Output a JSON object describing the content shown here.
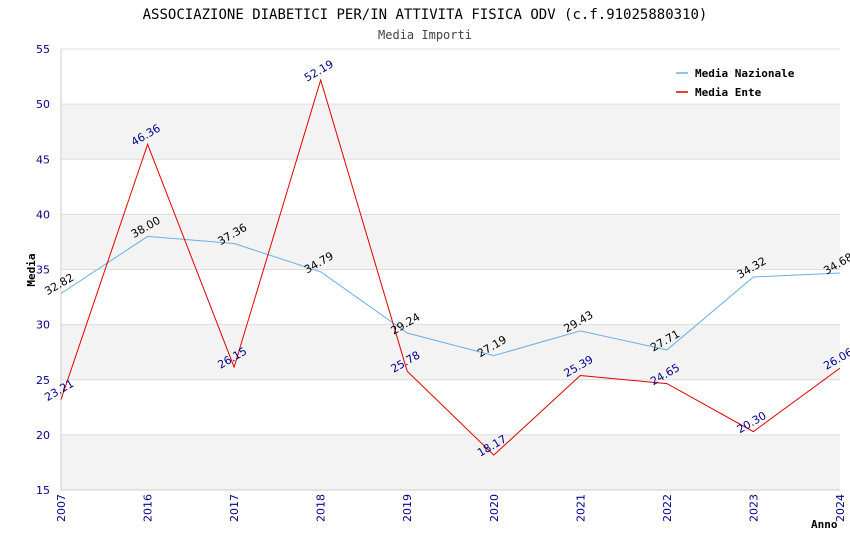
{
  "chart_data": {
    "type": "line",
    "title": "ASSOCIAZIONE DIABETICI PER/IN ATTIVITA FISICA ODV (c.f.91025880310)",
    "subtitle": "Media Importi",
    "xlabel": "Anno",
    "ylabel": "Media",
    "categories": [
      "2007",
      "2016",
      "2017",
      "2018",
      "2019",
      "2020",
      "2021",
      "2022",
      "2023",
      "2024"
    ],
    "ylim": [
      15,
      55
    ],
    "yticks": [
      15,
      20,
      25,
      30,
      35,
      40,
      45,
      50,
      55
    ],
    "grid": true,
    "legend_position": "top-right",
    "series": [
      {
        "name": "Media Nazionale",
        "color": "#6aaee8",
        "label_color": "#000000",
        "values": [
          32.82,
          38.0,
          37.36,
          34.79,
          29.24,
          27.19,
          29.43,
          27.71,
          34.32,
          34.68
        ],
        "labels": [
          "32.82",
          "38.00",
          "37.36",
          "34.79",
          "29.24",
          "27.19",
          "29.43",
          "27.71",
          "34.32",
          "34.68"
        ]
      },
      {
        "name": "Media Ente",
        "color": "#e00000",
        "label_color": "#00008b",
        "values": [
          23.21,
          46.36,
          26.15,
          52.19,
          25.78,
          18.17,
          25.39,
          24.65,
          20.3,
          26.06
        ],
        "labels": [
          "23.21",
          "46.36",
          "26.15",
          "52.19",
          "25.78",
          "18.17",
          "25.39",
          "24.65",
          "20.30",
          "26.06"
        ]
      }
    ]
  }
}
